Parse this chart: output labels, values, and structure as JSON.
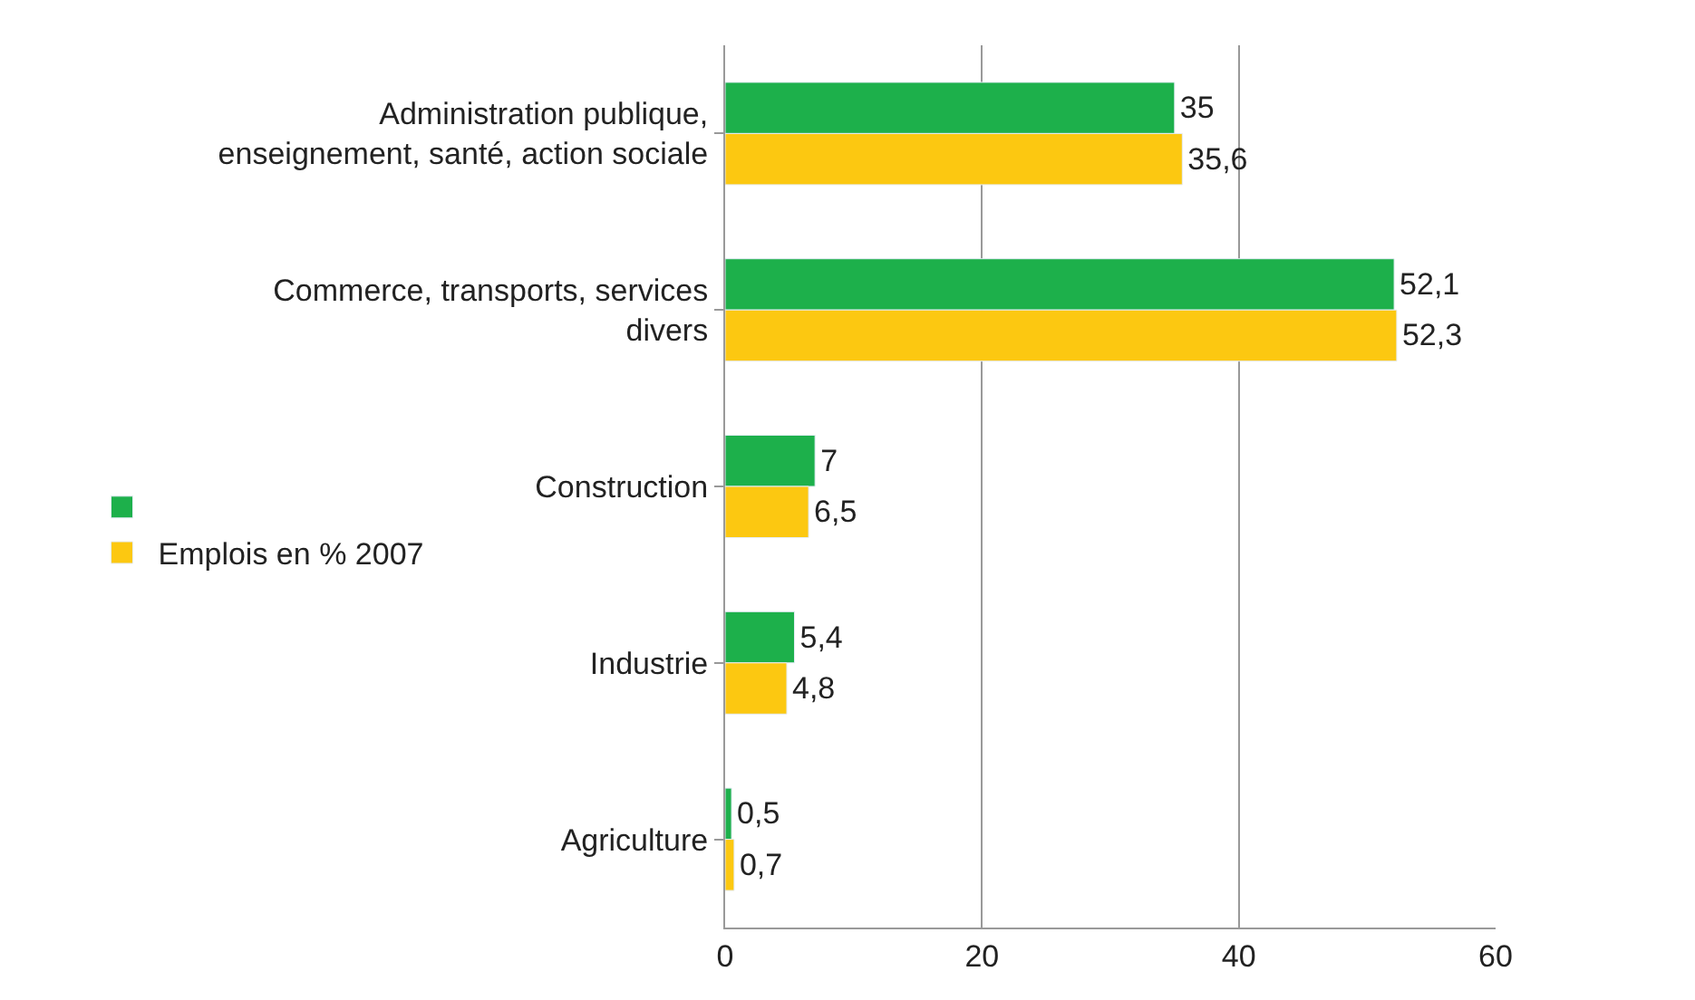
{
  "chart_data": {
    "type": "bar",
    "orientation": "horizontal",
    "categories": [
      "Administration publique,\nenseignement, santé, action sociale",
      "Commerce, transports, services\ndivers",
      "Construction",
      "Industrie",
      "Agriculture"
    ],
    "series": [
      {
        "color": "#1db04b",
        "values": [
          35,
          52.1,
          7,
          5.4,
          0.5
        ],
        "value_labels": [
          "35",
          "52,1",
          "7",
          "5,4",
          "0,5"
        ]
      },
      {
        "name": "Emplois en % 2007",
        "color": "#fcc811",
        "values": [
          35.6,
          52.3,
          6.5,
          4.8,
          0.7
        ],
        "value_labels": [
          "35,6",
          "52,3",
          "6,5",
          "4,8",
          "0,7"
        ]
      }
    ],
    "xlim": [
      0,
      60
    ],
    "xticks": [
      0,
      20,
      40,
      60
    ],
    "grid": "x",
    "legend": "left"
  }
}
